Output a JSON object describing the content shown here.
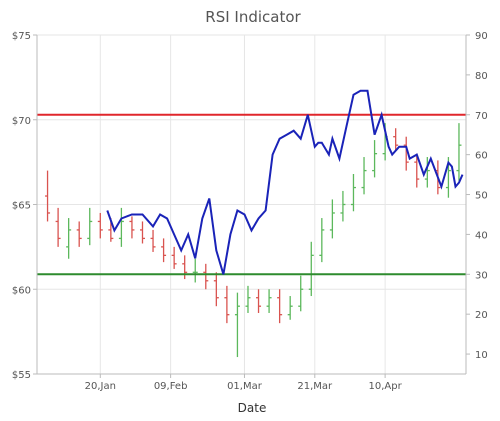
{
  "chart_data": {
    "type": "line",
    "title": "RSI Indicator",
    "xlabel": "Date",
    "ylabel": "",
    "y2label": "",
    "grid": true,
    "legend": "none",
    "x_ticks": [
      "20,Jan",
      "09,Feb",
      "01,Mar",
      "21,Mar",
      "10,Apr"
    ],
    "y_ticks": [
      "$55",
      "$60",
      "$65",
      "$70",
      "$75"
    ],
    "y2_ticks": [
      "10",
      "20",
      "30",
      "40",
      "50",
      "60",
      "70",
      "80",
      "90"
    ],
    "ylim": [
      55,
      75
    ],
    "y2lim": [
      5,
      90
    ],
    "x_range": [
      "2016-01-02",
      "2016-05-03"
    ],
    "overbought_level": 70,
    "oversold_level": 30,
    "colors": {
      "rsi": "#1a23b8",
      "overbought": "#e0262b",
      "oversold": "#2e8b2e",
      "bull": "#5cb85c",
      "bear": "#d9534f",
      "grid": "#e6e6e6",
      "axis": "#bbbbbb"
    },
    "rsi": {
      "x": [
        "2016-01-22",
        "2016-01-24",
        "2016-01-26",
        "2016-01-29",
        "2016-02-01",
        "2016-02-04",
        "2016-02-06",
        "2016-02-08",
        "2016-02-10",
        "2016-02-12",
        "2016-02-14",
        "2016-02-16",
        "2016-02-18",
        "2016-02-20",
        "2016-02-22",
        "2016-02-24",
        "2016-02-26",
        "2016-02-28",
        "2016-03-01",
        "2016-03-03",
        "2016-03-05",
        "2016-03-07",
        "2016-03-09",
        "2016-03-11",
        "2016-03-13",
        "2016-03-15",
        "2016-03-17",
        "2016-03-19",
        "2016-03-21",
        "2016-03-22",
        "2016-03-23",
        "2016-03-25",
        "2016-03-26",
        "2016-03-28",
        "2016-03-30",
        "2016-04-01",
        "2016-04-03",
        "2016-04-05",
        "2016-04-07",
        "2016-04-09",
        "2016-04-11",
        "2016-04-12",
        "2016-04-14",
        "2016-04-16",
        "2016-04-17",
        "2016-04-19",
        "2016-04-21",
        "2016-04-23",
        "2016-04-26",
        "2016-04-28",
        "2016-04-29",
        "2016-04-30",
        "2016-05-01",
        "2016-05-02"
      ],
      "values": [
        46,
        41,
        44,
        45,
        45,
        42,
        45,
        44,
        40,
        36,
        40,
        34,
        44,
        49,
        36,
        30,
        40,
        46,
        45,
        41,
        44,
        46,
        60,
        64,
        65,
        66,
        64,
        70,
        62,
        63,
        63,
        60,
        64,
        59,
        67,
        75,
        76,
        76,
        65,
        70,
        62,
        60,
        62,
        62,
        59,
        60,
        55,
        59,
        52,
        58,
        57,
        52,
        53,
        55
      ]
    },
    "ohlc": {
      "x": [
        "2016-01-05",
        "2016-01-08",
        "2016-01-11",
        "2016-01-14",
        "2016-01-17",
        "2016-01-20",
        "2016-01-23",
        "2016-01-26",
        "2016-01-29",
        "2016-02-01",
        "2016-02-04",
        "2016-02-07",
        "2016-02-10",
        "2016-02-13",
        "2016-02-16",
        "2016-02-19",
        "2016-02-22",
        "2016-02-25",
        "2016-02-28",
        "2016-03-02",
        "2016-03-05",
        "2016-03-08",
        "2016-03-11",
        "2016-03-14",
        "2016-03-17",
        "2016-03-20",
        "2016-03-23",
        "2016-03-26",
        "2016-03-29",
        "2016-04-01",
        "2016-04-04",
        "2016-04-07",
        "2016-04-10",
        "2016-04-13",
        "2016-04-16",
        "2016-04-19",
        "2016-04-22",
        "2016-04-25",
        "2016-04-28",
        "2016-05-01"
      ],
      "open": [
        65.5,
        64.0,
        62.5,
        63.5,
        63.0,
        64.0,
        63.5,
        63.0,
        64.0,
        63.5,
        63.0,
        62.5,
        62.0,
        61.5,
        61.0,
        61.0,
        60.5,
        59.5,
        58.5,
        59.0,
        59.5,
        59.0,
        59.5,
        58.5,
        59.0,
        60.0,
        62.0,
        63.5,
        64.5,
        65.0,
        66.0,
        67.0,
        68.0,
        69.0,
        68.5,
        67.5,
        66.5,
        67.0,
        66.0,
        67.0
      ],
      "close": [
        64.5,
        63.0,
        63.5,
        63.0,
        64.0,
        63.5,
        63.0,
        64.0,
        63.5,
        63.0,
        62.5,
        62.0,
        61.5,
        61.0,
        61.0,
        60.5,
        59.5,
        58.5,
        59.0,
        59.5,
        59.0,
        59.5,
        58.5,
        59.0,
        60.0,
        62.0,
        63.5,
        64.5,
        65.0,
        66.0,
        67.0,
        68.0,
        69.0,
        68.5,
        67.5,
        66.5,
        67.0,
        66.0,
        67.0,
        68.5
      ],
      "high": [
        67.0,
        64.8,
        64.2,
        64.0,
        64.8,
        64.5,
        64.2,
        64.8,
        64.3,
        64.0,
        63.5,
        63.0,
        62.5,
        62.0,
        61.8,
        61.5,
        61.0,
        60.2,
        59.8,
        60.2,
        60.0,
        60.0,
        60.0,
        59.6,
        60.8,
        62.8,
        64.2,
        65.3,
        65.8,
        66.8,
        67.8,
        68.8,
        69.8,
        69.5,
        69.0,
        68.0,
        67.8,
        67.6,
        67.8,
        69.8
      ],
      "low": [
        64.0,
        62.5,
        61.8,
        62.5,
        62.6,
        63.0,
        62.8,
        62.5,
        63.0,
        62.7,
        62.2,
        61.6,
        61.2,
        60.6,
        60.4,
        60.0,
        59.0,
        58.0,
        56.0,
        58.6,
        58.6,
        58.6,
        58.0,
        58.2,
        58.7,
        59.6,
        61.6,
        63.0,
        64.0,
        64.6,
        65.6,
        66.6,
        67.6,
        68.2,
        67.0,
        66.0,
        66.0,
        65.6,
        65.4,
        66.4
      ]
    }
  }
}
